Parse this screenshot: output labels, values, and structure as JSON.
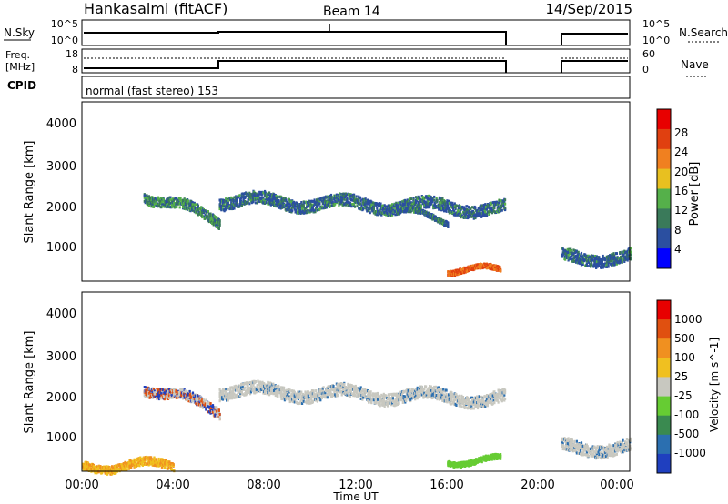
{
  "header": {
    "station": "Hankasalmi (fitACF)",
    "beam": "Beam 14",
    "date": "14/Sep/2015"
  },
  "top_panel": {
    "nsky_label": "N.Sky",
    "nsearch_label": "N.Search",
    "left_ticks": [
      "10^5",
      "10^0"
    ],
    "right_ticks": [
      "10^5",
      "10^0"
    ],
    "freq_label_1": "Freq.",
    "freq_label_2": "[MHz]",
    "nave_label": "Nave",
    "freq_ticks": [
      "18",
      "8"
    ],
    "nave_ticks": [
      "60",
      "0"
    ],
    "cpid_label": "CPID",
    "cpid_text": "normal (fast stereo) 153"
  },
  "power_panel": {
    "ylabel": "Slant Range [km]",
    "yticks": [
      "4000",
      "3000",
      "2000",
      "1000"
    ],
    "colorbar_label": "Power [dB]",
    "colorbar_ticks": [
      "28",
      "24",
      "20",
      "16",
      "12",
      "8",
      "4"
    ],
    "colors": [
      "#0000ff",
      "#2b4fa0",
      "#3a7a5a",
      "#55b04a",
      "#e8c020",
      "#f08020",
      "#e04010",
      "#e80000"
    ]
  },
  "velocity_panel": {
    "ylabel": "Slant Range [km]",
    "yticks": [
      "4000",
      "3000",
      "2000",
      "1000"
    ],
    "colorbar_label": "Velocity [m s^-1]",
    "colorbar_ticks": [
      "1000",
      "500",
      "100",
      "25",
      "-25",
      "-100",
      "-500",
      "-1000"
    ],
    "colors": [
      "#1f3fbf",
      "#2b6fb0",
      "#3a8a50",
      "#66cc33",
      "#c8c8c0",
      "#f0c020",
      "#f09020",
      "#e05010",
      "#e80000"
    ]
  },
  "x_axis": {
    "ticks": [
      "00:00",
      "04:00",
      "08:00",
      "12:00",
      "16:00",
      "20:00",
      "00:00"
    ],
    "label": "Time UT"
  },
  "chart_data": [
    {
      "type": "heatmap",
      "title": "Power",
      "x_range_hours": [
        0,
        24
      ],
      "y_range_km": [
        180,
        4600
      ],
      "data_gap_hours": [
        18.6,
        21.0
      ],
      "bands": [
        {
          "x": [
            2.7,
            6.0
          ],
          "y_center": [
            2350,
            1700
          ],
          "width_km": 250
        },
        {
          "x": [
            6.0,
            18.5
          ],
          "y_center": [
            2200,
            2000
          ],
          "width_km": 300
        },
        {
          "x": [
            14.0,
            16.0
          ],
          "y_center": [
            1900,
            1700
          ],
          "width_km": 120
        },
        {
          "x": [
            16.0,
            18.3
          ],
          "y_center": [
            500,
            450
          ],
          "width_km": 120
        },
        {
          "x": [
            21.0,
            24.0
          ],
          "y_center": [
            800,
            800
          ],
          "width_km": 300
        }
      ]
    },
    {
      "type": "heatmap",
      "title": "Velocity",
      "x_range_hours": [
        0,
        24
      ],
      "y_range_km": [
        180,
        4600
      ],
      "data_gap_hours": [
        18.6,
        21.0
      ],
      "bands": [
        {
          "x": [
            2.7,
            6.0
          ],
          "y_center": [
            2300,
            1700
          ],
          "width_km": 250
        },
        {
          "x": [
            6.0,
            18.5
          ],
          "y_center": [
            2200,
            2000
          ],
          "width_km": 300
        },
        {
          "x": [
            16.0,
            18.3
          ],
          "y_center": [
            500,
            450
          ],
          "width_km": 120
        },
        {
          "x": [
            0.0,
            4.0
          ],
          "y_center": [
            350,
            350
          ],
          "width_km": 200
        },
        {
          "x": [
            21.0,
            24.0
          ],
          "y_center": [
            800,
            800
          ],
          "width_km": 300
        }
      ]
    }
  ]
}
